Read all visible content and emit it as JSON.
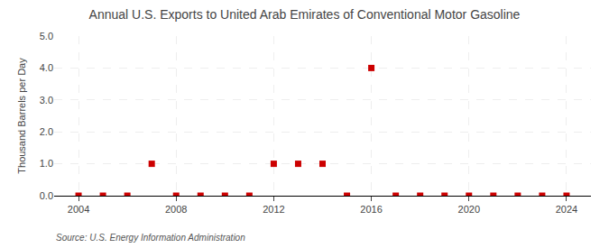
{
  "chart_data": {
    "type": "scatter",
    "title": "Annual U.S. Exports to United Arab Emirates of Conventional Motor Gasoline",
    "ylabel": "Thousand Barrels per Day",
    "annotations": [
      "Source: U.S. Energy Information Administration"
    ],
    "x": [
      2004,
      2005,
      2006,
      2007,
      2008,
      2009,
      2010,
      2011,
      2012,
      2013,
      2014,
      2015,
      2016,
      2017,
      2018,
      2019,
      2020,
      2021,
      2022,
      2023,
      2024
    ],
    "values": [
      0.0,
      0.0,
      0.0,
      1.0,
      0.0,
      0.0,
      0.0,
      0.0,
      1.0,
      1.0,
      1.0,
      0.0,
      4.0,
      0.0,
      0.0,
      0.0,
      0.0,
      0.0,
      0.0,
      0.0,
      0.0
    ],
    "color": "#cc0000",
    "marker": "square",
    "xlim": [
      2003,
      2025
    ],
    "xticks": [
      2004,
      2008,
      2012,
      2016,
      2020,
      2024
    ],
    "ylim": [
      0.0,
      5.0
    ],
    "yticks": [
      {
        "value": 0.0,
        "label": "0.0"
      },
      {
        "value": 1.0,
        "label": "1.0"
      },
      {
        "value": 2.0,
        "label": "2.0"
      },
      {
        "value": 3.0,
        "label": "3.0"
      },
      {
        "value": 4.0,
        "label": "4.0"
      },
      {
        "value": 5.0,
        "label": "5.0"
      }
    ],
    "grid": true
  }
}
